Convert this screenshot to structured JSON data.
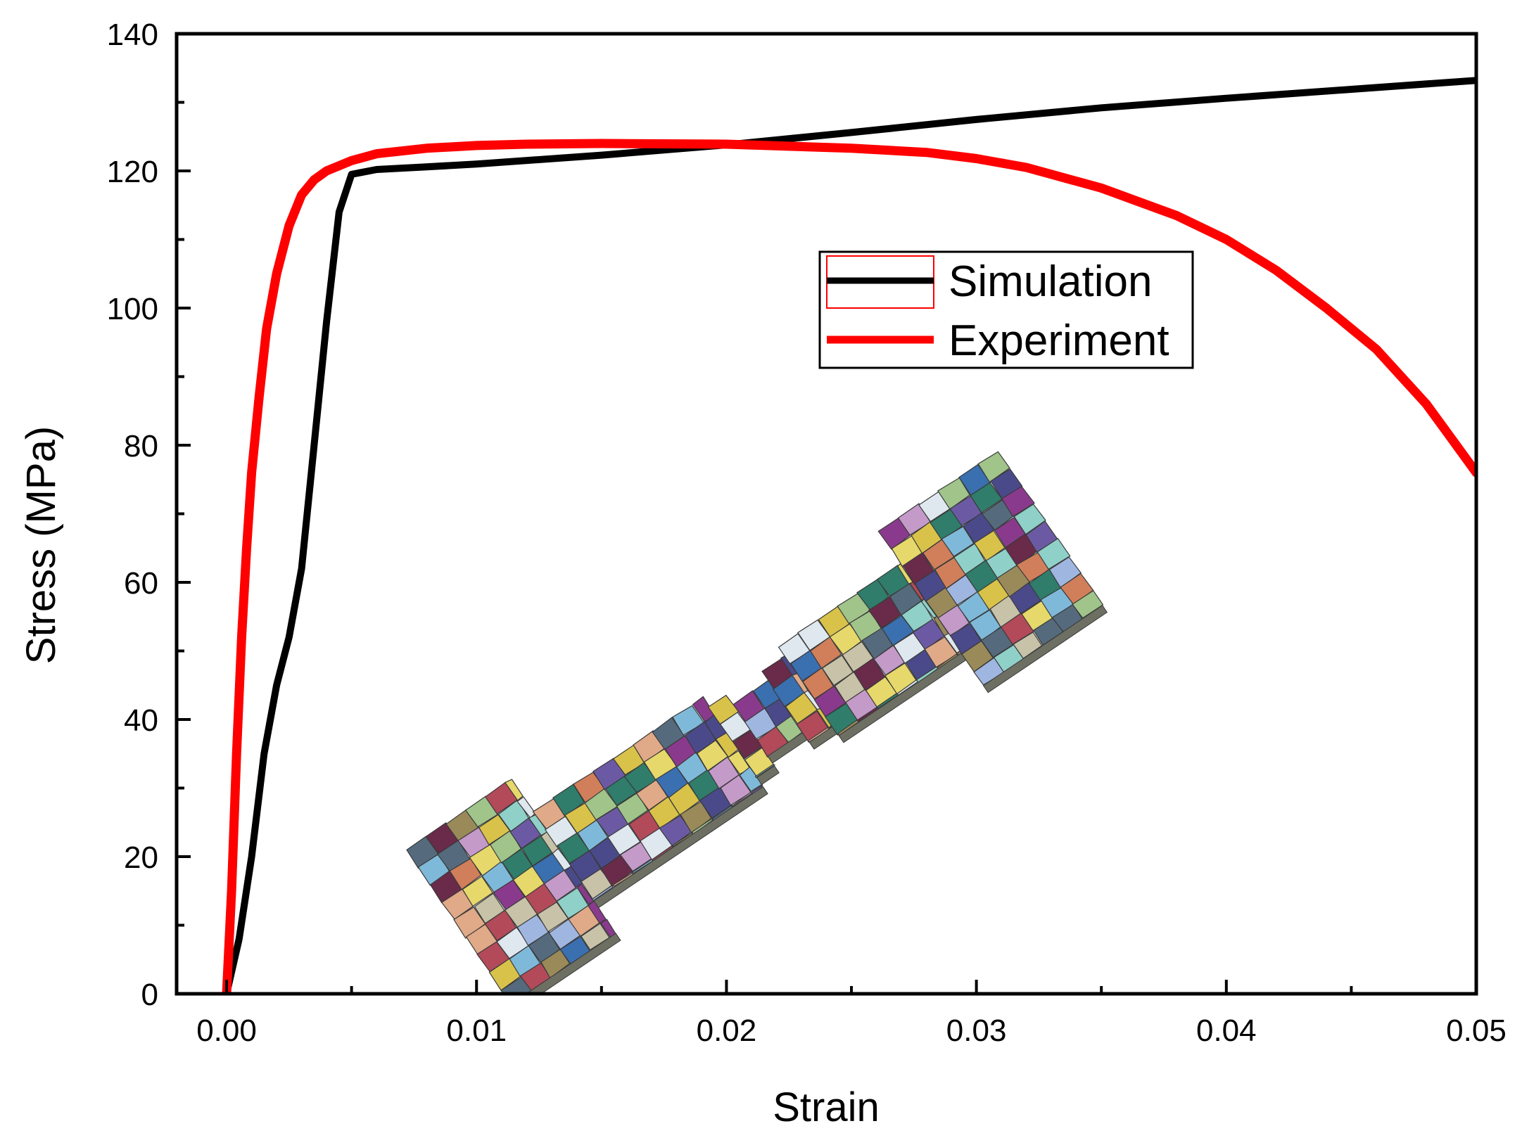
{
  "chart_data": {
    "type": "line",
    "title": "",
    "xlabel": "Strain",
    "ylabel": "Stress (MPa)",
    "xlim": [
      -0.002,
      0.05
    ],
    "ylim": [
      0,
      140
    ],
    "x_ticks": [
      0.0,
      0.01,
      0.02,
      0.03,
      0.04,
      0.05
    ],
    "x_tick_labels": [
      "0.00",
      "0.01",
      "0.02",
      "0.03",
      "0.04",
      "0.05"
    ],
    "y_ticks": [
      0,
      20,
      40,
      60,
      80,
      100,
      120,
      140
    ],
    "y_tick_labels": [
      "0",
      "20",
      "40",
      "60",
      "80",
      "100",
      "120",
      "140"
    ],
    "grid": false,
    "legend_position": "center-right",
    "inset_image": "polycrystalline-dogbone-tensile-specimen-mesh",
    "series": [
      {
        "name": "Simulation",
        "color": "#000000",
        "x": [
          0.0,
          0.0005,
          0.001,
          0.0015,
          0.002,
          0.0025,
          0.003,
          0.0035,
          0.004,
          0.0045,
          0.005,
          0.006,
          0.008,
          0.01,
          0.015,
          0.02,
          0.025,
          0.03,
          0.035,
          0.04,
          0.045,
          0.05
        ],
        "y": [
          0,
          8,
          20,
          35,
          45,
          52,
          62,
          80,
          98,
          114,
          119.5,
          120.2,
          120.6,
          121,
          122.3,
          123.8,
          125.6,
          127.5,
          129.2,
          130.6,
          131.9,
          133.2
        ]
      },
      {
        "name": "Experiment",
        "color": "#ff0000",
        "x": [
          0.0,
          0.0002,
          0.0004,
          0.0006,
          0.0008,
          0.001,
          0.0013,
          0.0016,
          0.002,
          0.0025,
          0.003,
          0.0035,
          0.004,
          0.005,
          0.006,
          0.008,
          0.01,
          0.012,
          0.015,
          0.02,
          0.025,
          0.028,
          0.03,
          0.032,
          0.035,
          0.038,
          0.04,
          0.042,
          0.044,
          0.046,
          0.048,
          0.049,
          0.05
        ],
        "y": [
          0,
          15,
          35,
          52,
          65,
          76,
          87,
          97,
          105,
          112,
          116.5,
          118.7,
          120,
          121.5,
          122.5,
          123.3,
          123.7,
          123.9,
          124,
          123.9,
          123.3,
          122.7,
          121.8,
          120.5,
          117.5,
          113.5,
          110,
          105.5,
          100,
          94,
          86,
          81,
          76
        ]
      }
    ]
  }
}
